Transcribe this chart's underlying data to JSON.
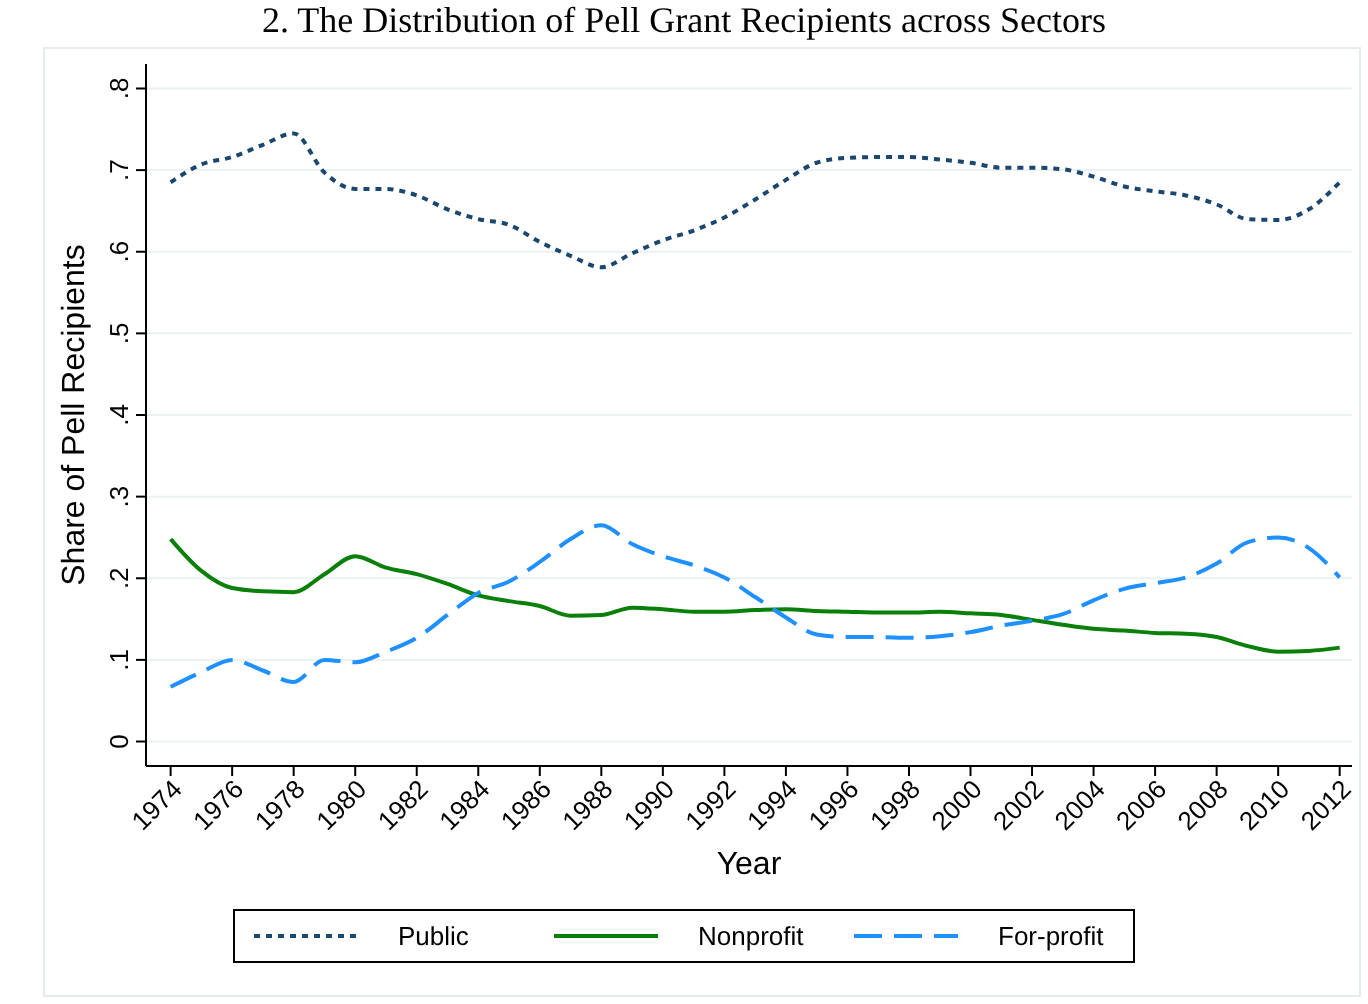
{
  "chart_data": {
    "type": "line",
    "title": "2. The Distribution of Pell Grant Recipients across Sectors",
    "xlabel": "Year",
    "ylabel": "Share of Pell Recipients",
    "x": [
      1974,
      1975,
      1976,
      1977,
      1978,
      1979,
      1980,
      1981,
      1982,
      1983,
      1984,
      1985,
      1986,
      1987,
      1988,
      1989,
      1990,
      1991,
      1992,
      1993,
      1994,
      1995,
      1996,
      1997,
      1998,
      1999,
      2000,
      2001,
      2002,
      2003,
      2004,
      2005,
      2006,
      2007,
      2008,
      2009,
      2010,
      2011,
      2012
    ],
    "series": [
      {
        "name": "Public",
        "color": "#1a476f",
        "line_style": "dotted",
        "values": [
          0.685,
          0.707,
          0.716,
          0.731,
          0.745,
          0.697,
          0.677,
          0.677,
          0.669,
          0.652,
          0.64,
          0.633,
          0.612,
          0.595,
          0.581,
          0.598,
          0.614,
          0.626,
          0.642,
          0.664,
          0.688,
          0.709,
          0.715,
          0.716,
          0.716,
          0.713,
          0.709,
          0.703,
          0.703,
          0.701,
          0.692,
          0.68,
          0.674,
          0.669,
          0.658,
          0.64,
          0.639,
          0.652,
          0.685
        ]
      },
      {
        "name": "Nonprofit",
        "color": "#0a800a",
        "line_style": "solid",
        "values": [
          0.248,
          0.209,
          0.188,
          0.184,
          0.183,
          0.205,
          0.227,
          0.213,
          0.205,
          0.193,
          0.179,
          0.172,
          0.166,
          0.154,
          0.155,
          0.164,
          0.162,
          0.159,
          0.159,
          0.161,
          0.162,
          0.16,
          0.159,
          0.158,
          0.158,
          0.159,
          0.157,
          0.155,
          0.149,
          0.143,
          0.138,
          0.136,
          0.133,
          0.132,
          0.128,
          0.117,
          0.11,
          0.111,
          0.115
        ]
      },
      {
        "name": "For-profit",
        "color": "#1e90ff",
        "line_style": "dashed",
        "values": [
          0.067,
          0.085,
          0.1,
          0.087,
          0.073,
          0.1,
          0.097,
          0.11,
          0.127,
          0.155,
          0.182,
          0.196,
          0.22,
          0.248,
          0.265,
          0.242,
          0.227,
          0.216,
          0.201,
          0.177,
          0.152,
          0.131,
          0.128,
          0.128,
          0.127,
          0.129,
          0.134,
          0.142,
          0.148,
          0.156,
          0.173,
          0.187,
          0.194,
          0.201,
          0.218,
          0.244,
          0.25,
          0.237,
          0.201
        ]
      }
    ],
    "xlim": [
      1973.2,
      2012.4
    ],
    "xticks": [
      1974,
      1976,
      1978,
      1980,
      1982,
      1984,
      1986,
      1988,
      1990,
      1992,
      1994,
      1996,
      1998,
      2000,
      2002,
      2004,
      2006,
      2008,
      2010,
      2012
    ],
    "ylim": [
      -0.03,
      0.83
    ],
    "yticks": [
      0,
      {
        "value": 0.1,
        "label": ".1"
      },
      {
        "value": 0.2,
        "label": ".2"
      },
      {
        "value": 0.3,
        "label": ".3"
      },
      {
        "value": 0.4,
        "label": ".4"
      },
      {
        "value": 0.5,
        "label": ".5"
      },
      {
        "value": 0.6,
        "label": ".6"
      },
      {
        "value": 0.7,
        "label": ".7"
      },
      {
        "value": 0.8,
        "label": ".8"
      }
    ],
    "grid": "y",
    "legend": "bottom",
    "marker": "none"
  }
}
